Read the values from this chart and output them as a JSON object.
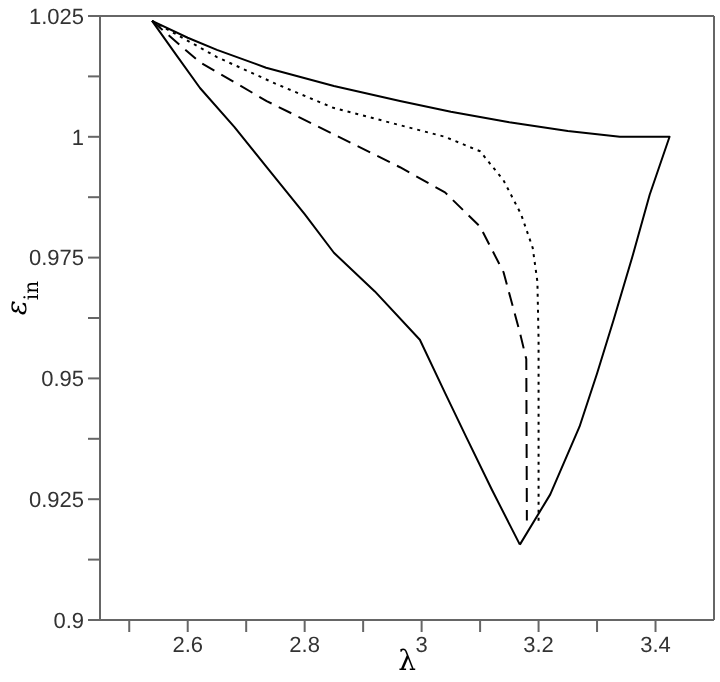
{
  "chart_data": {
    "type": "line",
    "xlabel": "λ",
    "ylabel": "ε$_{in}$",
    "xlim": [
      2.45,
      3.5
    ],
    "xticks": [
      {
        "value": 2.5,
        "label": null
      },
      2.6,
      {
        "value": 2.7,
        "label": null
      },
      2.8,
      {
        "value": 2.9,
        "label": null
      },
      3,
      {
        "value": 3.1,
        "label": null
      },
      3.2,
      {
        "value": 3.3,
        "label": null
      },
      3.4
    ],
    "ylim": [
      0.9,
      1.025
    ],
    "yticks": [
      0.9,
      {
        "value": 0.9125,
        "label": null
      },
      0.925,
      {
        "value": 0.9375,
        "label": null
      },
      0.95,
      {
        "value": 0.9625,
        "label": null
      },
      0.975,
      {
        "value": 0.9875,
        "label": null
      },
      1,
      {
        "value": 1.0125,
        "label": null
      },
      1.025
    ],
    "marker": "none",
    "series": [
      {
        "color": "#000000",
        "line_style": "solid",
        "x": [
          2.539,
          2.6,
          2.65,
          2.734,
          2.85,
          2.963,
          3.05,
          3.15,
          3.25,
          3.339,
          3.424,
          3.39,
          3.36,
          3.328,
          3.3,
          3.27,
          3.22,
          3.168
        ],
        "values": [
          1.024,
          1.0205,
          1.018,
          1.0143,
          1.0105,
          1.0074,
          1.0052,
          1.003,
          1.0012,
          1.0,
          1.0,
          0.988,
          0.975,
          0.962,
          0.951,
          0.94,
          0.926,
          0.9156
        ]
      },
      {
        "color": "#000000",
        "line_style": "solid",
        "x": [
          2.539,
          2.58,
          2.621,
          2.68,
          2.735,
          2.8,
          2.85,
          2.92,
          2.997,
          3.04,
          3.077,
          3.12,
          3.168
        ],
        "values": [
          1.024,
          1.017,
          1.0101,
          1.002,
          0.9937,
          0.984,
          0.976,
          0.968,
          0.958,
          0.947,
          0.9377,
          0.927,
          0.9156
        ]
      },
      {
        "color": "#000000",
        "line_style": "dotted",
        "x": [
          2.539,
          2.65,
          2.75,
          2.849,
          2.96,
          3.04,
          3.1,
          3.14,
          3.17,
          3.19,
          3.198,
          3.2,
          3.2
        ],
        "values": [
          1.024,
          1.0165,
          1.011,
          1.006,
          1.0025,
          1.0,
          0.997,
          0.991,
          0.984,
          0.977,
          0.97,
          0.958,
          0.92
        ]
      },
      {
        "color": "#000000",
        "line_style": "dashed",
        "x": [
          2.539,
          2.62,
          2.735,
          2.85,
          2.963,
          3.04,
          3.1,
          3.14,
          3.168,
          3.179,
          3.18
        ],
        "values": [
          1.024,
          1.0155,
          1.0074,
          1.0005,
          0.9937,
          0.9885,
          0.9814,
          0.972,
          0.9595,
          0.954,
          0.9206
        ]
      }
    ]
  }
}
